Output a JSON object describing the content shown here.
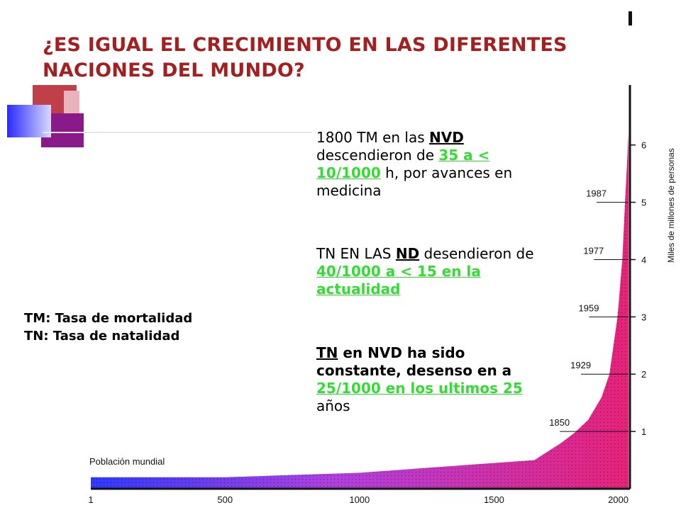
{
  "title": {
    "line1": "¿ES IGUAL EL CRECIMIENTO EN LAS DIFERENTES",
    "line2": "NACIONES DEL MUNDO?"
  },
  "colors": {
    "title": "#a32020",
    "highlight": "#33dd33",
    "area_left": "#3a3aff",
    "area_right": "#e8237a"
  },
  "legend": {
    "tm": "TM: Tasa de mortalidad",
    "tn": "TN: Tasa de natalidad"
  },
  "text": {
    "p1": {
      "a": "1800 TM en las ",
      "b": "NVD",
      "c": " descendieron de ",
      "d": "35 a < 10/1000",
      "e": " h, por avances en medicina"
    },
    "p2": {
      "a": "TN EN LAS ",
      "b": "ND",
      "c": " desendieron de ",
      "d": "40/1000 a < 15 en la actualidad"
    },
    "p3": {
      "a": "TN",
      "b": " en NVD ha sido constante, desenso en a",
      "c": " 25/1000 en los ultimos 25 ",
      "d": "años"
    }
  },
  "chart_data": {
    "type": "area",
    "title": "Población mundial",
    "ylabel": "Miles de millones de personas",
    "x": [
      1,
      500,
      1000,
      1500,
      1650,
      1750,
      1800,
      1850,
      1900,
      1929,
      1959,
      1977,
      1987,
      2000
    ],
    "values": [
      0.2,
      0.2,
      0.28,
      0.45,
      0.5,
      0.8,
      0.98,
      1.2,
      1.6,
      2.0,
      3.0,
      4.0,
      5.0,
      6.2
    ],
    "xticks": [
      "1",
      "500",
      "1000",
      "1500",
      "2000"
    ],
    "yticks": [
      "1",
      "2",
      "3",
      "4",
      "5",
      "6"
    ],
    "annotations": [
      {
        "year": "1850",
        "value": 1
      },
      {
        "year": "1929",
        "value": 2
      },
      {
        "year": "1959",
        "value": 3
      },
      {
        "year": "1977",
        "value": 4
      },
      {
        "year": "1987",
        "value": 5
      }
    ],
    "xlim": [
      1,
      2000
    ],
    "ylim": [
      0,
      6.8
    ],
    "grid": false
  }
}
